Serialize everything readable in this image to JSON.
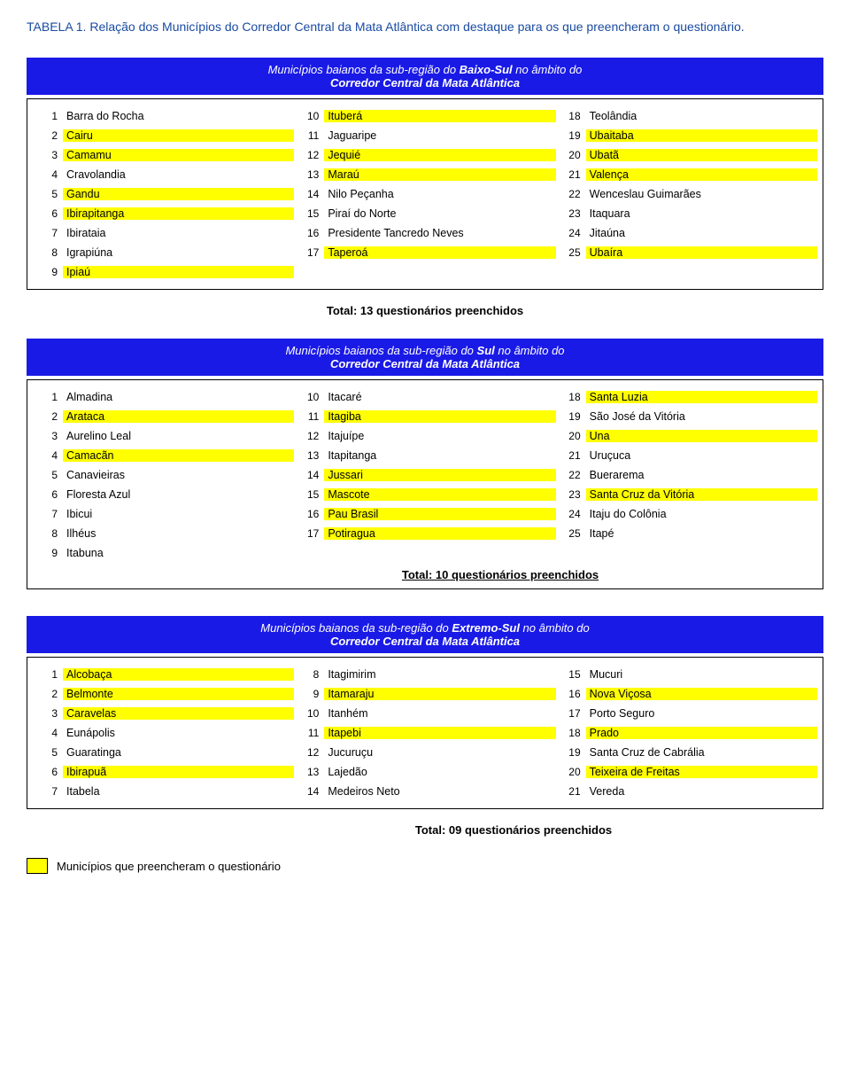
{
  "caption": "TABELA 1. Relação dos Municípios do Corredor Central da Mata Atlântica com destaque para os que preencheram o questionário.",
  "sections": [
    {
      "header_pre": "Municípios baianos da sub-região do ",
      "header_bold": "Baixo-Sul",
      "header_post": " no âmbito do",
      "header_line2": "Corredor Central da Mata Atlântica",
      "total": "Total: 13 questionários preenchidos",
      "total_class": "total-center",
      "cols": [
        [
          {
            "n": "1",
            "t": "Barra do Rocha",
            "hl": false
          },
          {
            "n": "2",
            "t": "Cairu",
            "hl": true
          },
          {
            "n": "3",
            "t": "Camamu",
            "hl": true
          },
          {
            "n": "4",
            "t": "Cravolandia",
            "hl": false
          },
          {
            "n": "5",
            "t": "Gandu",
            "hl": true
          },
          {
            "n": "6",
            "t": "Ibirapitanga",
            "hl": true
          },
          {
            "n": "7",
            "t": "Ibirataia",
            "hl": false
          },
          {
            "n": "8",
            "t": "Igrapiúna",
            "hl": false
          },
          {
            "n": "9",
            "t": "Ipiaú",
            "hl": true
          }
        ],
        [
          {
            "n": "10",
            "t": "Ituberá",
            "hl": true
          },
          {
            "n": "11",
            "t": "Jaguaripe",
            "hl": false
          },
          {
            "n": "12",
            "t": "Jequié",
            "hl": true
          },
          {
            "n": "13",
            "t": "Maraú",
            "hl": true
          },
          {
            "n": "14",
            "t": "Nilo Peçanha",
            "hl": false
          },
          {
            "n": "15",
            "t": "Piraí do Norte",
            "hl": false
          },
          {
            "n": "16",
            "t": "Presidente Tancredo Neves",
            "hl": false
          },
          {
            "n": "17",
            "t": "Taperoá",
            "hl": true
          }
        ],
        [
          {
            "n": "18",
            "t": "Teolândia",
            "hl": false
          },
          {
            "n": "19",
            "t": "Ubaitaba",
            "hl": true
          },
          {
            "n": "20",
            "t": "Ubatã",
            "hl": true
          },
          {
            "n": "21",
            "t": "Valença",
            "hl": true
          },
          {
            "n": "22",
            "t": "Wenceslau Guimarães",
            "hl": false
          },
          {
            "n": "23",
            "t": "Itaquara",
            "hl": false
          },
          {
            "n": "24",
            "t": "Jitaúna",
            "hl": false
          },
          {
            "n": "25",
            "t": "Ubaíra",
            "hl": true
          }
        ]
      ]
    },
    {
      "header_pre": "Municípios baianos da sub-região do ",
      "header_bold": "Sul",
      "header_post": " no âmbito do",
      "header_line2": "Corredor Central da Mata Atlântica",
      "total": "Total: 10 questionários preenchidos",
      "total_class": "total-under",
      "total_in_box": true,
      "cols": [
        [
          {
            "n": "1",
            "t": "Almadina",
            "hl": false
          },
          {
            "n": "2",
            "t": "Arataca",
            "hl": true
          },
          {
            "n": "3",
            "t": "Aurelino Leal",
            "hl": false
          },
          {
            "n": "4",
            "t": "Camacãn",
            "hl": true
          },
          {
            "n": "5",
            "t": "Canavieiras",
            "hl": false
          },
          {
            "n": "6",
            "t": "Floresta Azul",
            "hl": false
          },
          {
            "n": "7",
            "t": "Ibicui",
            "hl": false
          },
          {
            "n": "8",
            "t": "Ilhéus",
            "hl": false
          },
          {
            "n": "9",
            "t": "Itabuna",
            "hl": false
          }
        ],
        [
          {
            "n": "10",
            "t": "Itacaré",
            "hl": false
          },
          {
            "n": "11",
            "t": "Itagiba",
            "hl": true
          },
          {
            "n": "12",
            "t": "Itajuípe",
            "hl": false
          },
          {
            "n": "13",
            "t": "Itapitanga",
            "hl": false
          },
          {
            "n": "14",
            "t": "Jussari",
            "hl": true
          },
          {
            "n": "15",
            "t": "Mascote",
            "hl": true
          },
          {
            "n": "16",
            "t": "Pau Brasil",
            "hl": true
          },
          {
            "n": "17",
            "t": "Potiragua",
            "hl": true
          }
        ],
        [
          {
            "n": "18",
            "t": "Santa Luzia",
            "hl": true
          },
          {
            "n": "19",
            "t": "São José da Vitória",
            "hl": false
          },
          {
            "n": "20",
            "t": "Una",
            "hl": true
          },
          {
            "n": "21",
            "t": "Uruçuca",
            "hl": false
          },
          {
            "n": "22",
            "t": "Buerarema",
            "hl": false
          },
          {
            "n": "23",
            "t": "Santa Cruz da Vitória",
            "hl": true
          },
          {
            "n": "24",
            "t": "Itaju do Colônia",
            "hl": false
          },
          {
            "n": "25",
            "t": "Itapé",
            "hl": false
          }
        ]
      ]
    },
    {
      "header_pre": "Municípios baianos da sub-região do ",
      "header_bold": "Extremo-Sul",
      "header_post": " no âmbito do",
      "header_line2": "Corredor Central da Mata Atlântica",
      "total": "Total: 09 questionários preenchidos",
      "total_class": "total-right-offset",
      "cols": [
        [
          {
            "n": "1",
            "t": "Alcobaça",
            "hl": true
          },
          {
            "n": "2",
            "t": "Belmonte",
            "hl": true
          },
          {
            "n": "3",
            "t": "Caravelas",
            "hl": true
          },
          {
            "n": "4",
            "t": "Eunápolis",
            "hl": false
          },
          {
            "n": "5",
            "t": "Guaratinga",
            "hl": false
          },
          {
            "n": "6",
            "t": "Ibirapuã",
            "hl": true
          },
          {
            "n": "7",
            "t": "Itabela",
            "hl": false
          }
        ],
        [
          {
            "n": "8",
            "t": "Itagimirim",
            "hl": false
          },
          {
            "n": "9",
            "t": "Itamaraju",
            "hl": true
          },
          {
            "n": "10",
            "t": "Itanhém",
            "hl": false
          },
          {
            "n": "11",
            "t": "Itapebi",
            "hl": true
          },
          {
            "n": "12",
            "t": "Jucuruçu",
            "hl": false
          },
          {
            "n": "13",
            "t": "Lajedão",
            "hl": false
          },
          {
            "n": "14",
            "t": "Medeiros Neto",
            "hl": false
          }
        ],
        [
          {
            "n": "15",
            "t": "Mucuri",
            "hl": false
          },
          {
            "n": "16",
            "t": "Nova Viçosa",
            "hl": true
          },
          {
            "n": "17",
            "t": "Porto Seguro",
            "hl": false
          },
          {
            "n": "18",
            "t": "Prado",
            "hl": true
          },
          {
            "n": "19",
            "t": "Santa Cruz de Cabrália",
            "hl": false
          },
          {
            "n": "20",
            "t": "Teixeira de Freitas",
            "hl": true
          },
          {
            "n": "21",
            "t": "Vereda",
            "hl": false
          }
        ]
      ]
    }
  ],
  "legend": "Municípios que preencheram o questionário"
}
